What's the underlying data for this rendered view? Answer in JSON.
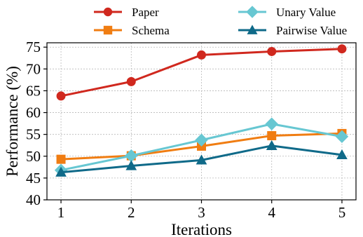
{
  "chart_data": {
    "type": "line",
    "xlabel": "Iterations",
    "ylabel": "Performance (%)",
    "x": [
      1,
      2,
      3,
      4,
      5
    ],
    "xticks": [
      "1",
      "2",
      "3",
      "4",
      "5"
    ],
    "yticks": [
      "40",
      "45",
      "50",
      "55",
      "60",
      "65",
      "70",
      "75"
    ],
    "ylim": [
      40,
      76
    ],
    "grid": true,
    "legend_position": "top",
    "series": [
      {
        "name": "Paper",
        "color": "#d0281e",
        "marker": "circle",
        "values": [
          63.8,
          67.1,
          73.2,
          74.0,
          74.6
        ]
      },
      {
        "name": "Schema",
        "color": "#f07d12",
        "marker": "square",
        "values": [
          49.3,
          50.1,
          52.3,
          54.7,
          55.2
        ]
      },
      {
        "name": "Unary Value",
        "color": "#67c7d2",
        "marker": "diamond",
        "values": [
          46.8,
          50.1,
          53.7,
          57.4,
          54.5
        ]
      },
      {
        "name": "Pairwise Value",
        "color": "#0f6a89",
        "marker": "triangle",
        "values": [
          46.3,
          47.8,
          49.1,
          52.4,
          50.3
        ]
      }
    ]
  }
}
